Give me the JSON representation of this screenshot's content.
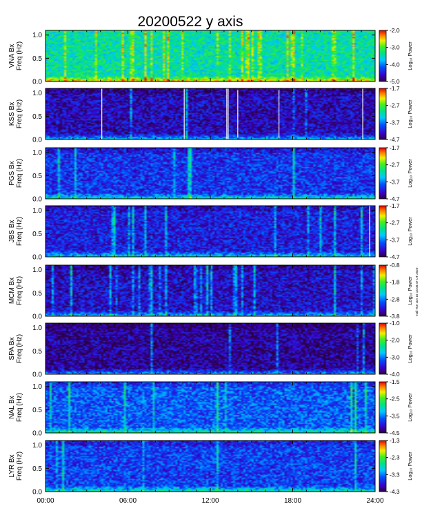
{
  "title": "20200522  y  axis",
  "side_note": "mall Tue Jun 16 14:08:47 UT 2020",
  "chart_data": {
    "type": "heatmap",
    "x_ticks": [
      "00:00",
      "06:00",
      "12:00",
      "18:00",
      "24:00"
    ],
    "x_range_hours": [
      0,
      24
    ],
    "y_ticks": [
      "0.0",
      "0.5",
      "1.0"
    ],
    "y_range_hz": [
      0.0,
      1.1
    ],
    "colorbar_label": "Log₁₀ Power",
    "panels": [
      {
        "station": "VNA",
        "component": "Bx",
        "ylabel_unit": "Freq (Hz)",
        "colorbar": {
          "min": -5.0,
          "max": -2.0,
          "ticks": [
            "-2.0",
            "-3.0",
            "-4.0",
            "-5.0"
          ]
        },
        "level": 0.52,
        "stripes": 0.35,
        "gaps": []
      },
      {
        "station": "KSS",
        "component": "Bx",
        "ylabel_unit": "Freq (Hz)",
        "colorbar": {
          "min": -4.7,
          "max": -1.7,
          "ticks": [
            "-1.7",
            "-2.7",
            "-3.7",
            "-4.7"
          ]
        },
        "level": 0.12,
        "stripes": 0.05,
        "gaps": [
          4.1,
          10.1,
          13.2,
          13.3,
          14.0,
          17.0,
          23.1
        ]
      },
      {
        "station": "PGS",
        "component": "Bx",
        "ylabel_unit": "Freq (Hz)",
        "colorbar": {
          "min": -4.7,
          "max": -1.7,
          "ticks": [
            "-1.7",
            "-2.7",
            "-3.7",
            "-4.7"
          ]
        },
        "level": 0.22,
        "stripes": 0.12,
        "gaps": []
      },
      {
        "station": "JBS",
        "component": "Bx",
        "ylabel_unit": "Freq (Hz)",
        "colorbar": {
          "min": -4.7,
          "max": -1.7,
          "ticks": [
            "-1.7",
            "-2.7",
            "-3.7",
            "-4.7"
          ]
        },
        "level": 0.18,
        "stripes": 0.15,
        "gaps": [
          23.6
        ]
      },
      {
        "station": "MCM",
        "component": "Bx",
        "ylabel_unit": "Freq (Hz)",
        "colorbar": {
          "min": -3.8,
          "max": -0.8,
          "ticks": [
            "-0.8",
            "-1.8",
            "-2.8",
            "-3.8"
          ]
        },
        "level": 0.14,
        "stripes": 0.3,
        "gaps": []
      },
      {
        "station": "SPA",
        "component": "Bx",
        "ylabel_unit": "Freq (Hz)",
        "colorbar": {
          "min": -4.0,
          "max": -1.0,
          "ticks": [
            "-1.0",
            "-2.0",
            "-3.0",
            "-4.0"
          ]
        },
        "level": 0.08,
        "stripes": 0.12,
        "gaps": []
      },
      {
        "station": "NAL",
        "component": "Bx",
        "ylabel_unit": "Freq (Hz)",
        "colorbar": {
          "min": -4.5,
          "max": -1.5,
          "ticks": [
            "-1.5",
            "-2.5",
            "-3.5",
            "-4.5"
          ]
        },
        "level": 0.28,
        "stripes": 0.12,
        "gaps": []
      },
      {
        "station": "LYR",
        "component": "Bx",
        "ylabel_unit": "Freq (Hz)",
        "colorbar": {
          "min": -4.3,
          "max": -1.3,
          "ticks": [
            "-1.3",
            "-2.3",
            "-3.3",
            "-4.3"
          ]
        },
        "level": 0.24,
        "stripes": 0.12,
        "gaps": []
      }
    ]
  }
}
